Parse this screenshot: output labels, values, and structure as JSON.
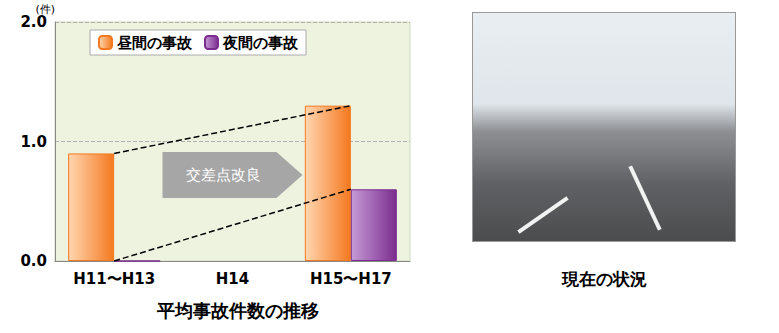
{
  "chart_data": {
    "type": "bar",
    "title": "平均事故件数の推移",
    "ylabel": "(件)",
    "categories": [
      "H11〜H13",
      "H14",
      "H15〜H17"
    ],
    "series": [
      {
        "name": "昼間の事故",
        "color": "#f47920",
        "values": [
          0.9,
          null,
          1.3
        ]
      },
      {
        "name": "夜間の事故",
        "color": "#7b2d8e",
        "values": [
          0,
          null,
          0.6
        ]
      }
    ],
    "ylim": [
      0,
      2
    ],
    "yticks": [
      {
        "value": 0,
        "label": "0.0"
      },
      {
        "value": 1,
        "label": "1.0"
      },
      {
        "value": 2,
        "label": "2.0"
      }
    ],
    "grid": true,
    "legend": "top",
    "annotations": [
      "交差点改良"
    ]
  },
  "photo": {
    "caption": "現在の状況"
  }
}
